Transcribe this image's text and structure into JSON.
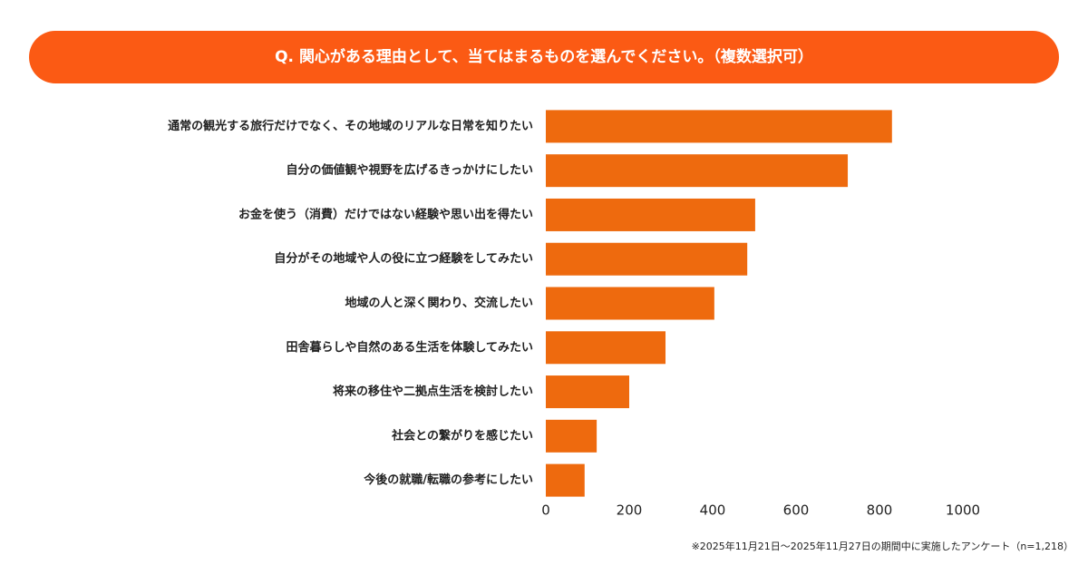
{
  "chart_data": {
    "type": "bar",
    "orientation": "horizontal",
    "title": "Q. 関心がある理由として、当てはまるものを選んでください。（複数選択可）",
    "categories": [
      "通常の観光する旅行だけでなく、その地域のリアルな日常を知りたい",
      "自分の価値観や視野を広げるきっかけにしたい",
      "お金を使う（消費）だけではない経験や思い出を得たい",
      "自分がその地域や人の役に立つ経験をしてみたい",
      "地域の人と深く関わり、交流したい",
      "田舎暮らしや自然のある生活を体験してみたい",
      "将来の移住や二拠点生活を検討したい",
      "社会との繋がりを感じたい",
      "今後の就職/転職の参考にしたい"
    ],
    "values": [
      830,
      724,
      502,
      483,
      404,
      287,
      200,
      122,
      93
    ],
    "color": "#ee6a0e",
    "title_color": "#fb5a14",
    "xlim": [
      0,
      1000
    ],
    "xticks": [
      0,
      200,
      400,
      600,
      800,
      1000
    ],
    "grid": false,
    "footnote": "※2025年11月21日〜2025年11月27日の期間中に実施したアンケート（n=1,218）"
  }
}
